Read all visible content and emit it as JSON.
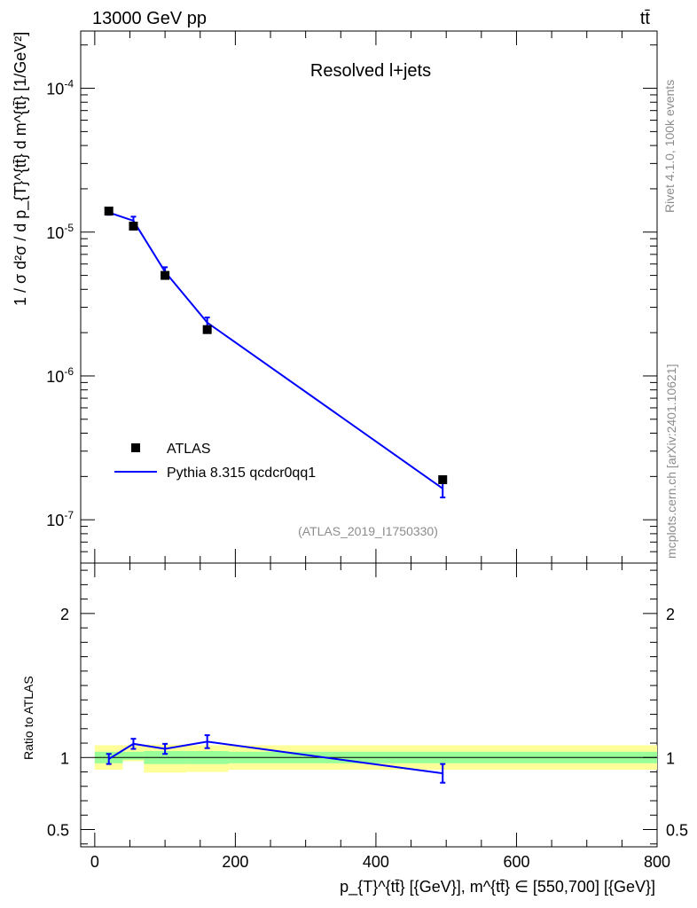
{
  "header": {
    "energy_label": "13000 GeV pp",
    "process_label": "tt̄"
  },
  "side_labels": {
    "rivet": "Rivet 4.1.0,  100k events",
    "site": "mcplots.cern.ch [arXiv:2401.10621]"
  },
  "chart_data": [
    {
      "type": "scatter",
      "panel": "main",
      "title": "Resolved l+jets",
      "analysis_tag": "(ATLAS_2019_I1750330)",
      "ylabel": "1 / σ d²σ / d p_{T}^{tt̄} d m^{tt̄} [1/GeV²]",
      "yscale": "log",
      "xlim": [
        -20,
        800
      ],
      "ylim": [
        5e-08,
        0.00025
      ],
      "y_ticks": [
        {
          "value": 1e-07,
          "label": "10",
          "exp": "-7"
        },
        {
          "value": 1e-06,
          "label": "10",
          "exp": "-6"
        },
        {
          "value": 1e-05,
          "label": "10",
          "exp": "-5"
        },
        {
          "value": 0.0001,
          "label": "10",
          "exp": "-4"
        }
      ],
      "legend": [
        {
          "name": "ATLAS",
          "marker": "square"
        },
        {
          "name": "Pythia 8.315 qcdcr0qq1",
          "marker": "line"
        }
      ],
      "series": [
        {
          "name": "ATLAS",
          "color": "#000000",
          "x": [
            20,
            55,
            100,
            160,
            495
          ],
          "y": [
            1.4e-05,
            1.1e-05,
            5e-06,
            2.1e-06,
            1.9e-07
          ]
        },
        {
          "name": "Pythia 8.315 qcdcr0qq1",
          "color": "#0000ff",
          "x": [
            20,
            55,
            100,
            160,
            495
          ],
          "y": [
            1.37e-05,
            1.2e-05,
            5.3e-06,
            2.35e-06,
            1.65e-07
          ],
          "y_err_low": [
            1.32e-05,
            1.12e-05,
            4.9e-06,
            2.15e-06,
            1.43e-07
          ],
          "y_err_high": [
            1.42e-05,
            1.28e-05,
            5.7e-06,
            2.55e-06,
            1.88e-07
          ]
        }
      ]
    },
    {
      "type": "line",
      "panel": "ratio",
      "ylabel": "Ratio to ATLAS",
      "xlabel": "p_{T}^{tt̄} [{GeV}], m^{tt̄} ∈ [550,700] [{GeV}]",
      "xlim": [
        -20,
        800
      ],
      "ylim": [
        0.38,
        2.35
      ],
      "x_ticks": [
        0,
        200,
        400,
        600,
        800
      ],
      "y_ticks": [
        0.5,
        1,
        2
      ],
      "reference_line": 1,
      "bands": {
        "yellow_color": "#ffff99",
        "green_color": "#99ff99",
        "bins": [
          {
            "x0": 0,
            "x1": 40,
            "y_lo": 0.915,
            "y_hi": 1.085,
            "g_lo": 0.96,
            "g_hi": 1.04
          },
          {
            "x0": 40,
            "x1": 70,
            "y_lo": 0.975,
            "y_hi": 1.085,
            "g_lo": 0.985,
            "g_hi": 1.04
          },
          {
            "x0": 70,
            "x1": 130,
            "y_lo": 0.895,
            "y_hi": 1.09,
            "g_lo": 0.955,
            "g_hi": 1.045
          },
          {
            "x0": 130,
            "x1": 190,
            "y_lo": 0.9,
            "y_hi": 1.085,
            "g_lo": 0.955,
            "g_hi": 1.045
          },
          {
            "x0": 190,
            "x1": 800,
            "y_lo": 0.915,
            "y_hi": 1.085,
            "g_lo": 0.96,
            "g_hi": 1.04
          }
        ]
      },
      "series": [
        {
          "name": "Pythia 8.315 qcdcr0qq1",
          "color": "#0000ff",
          "x": [
            20,
            55,
            100,
            160,
            495
          ],
          "y": [
            0.99,
            1.095,
            1.06,
            1.11,
            0.89
          ],
          "y_err_low": [
            0.955,
            1.06,
            1.025,
            1.065,
            0.825
          ],
          "y_err_high": [
            1.025,
            1.13,
            1.095,
            1.155,
            0.955
          ]
        }
      ]
    }
  ]
}
